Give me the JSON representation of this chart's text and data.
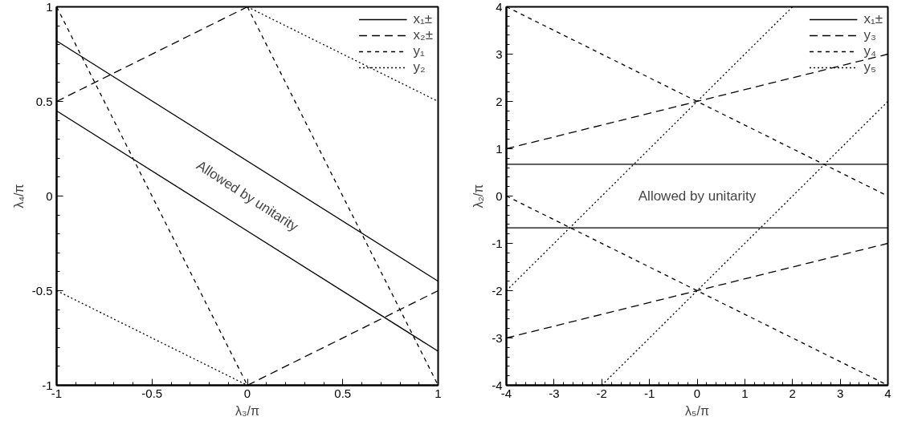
{
  "chart_data": [
    {
      "type": "line",
      "xlabel": "λ₃/π",
      "ylabel": "λ₄/π",
      "xlim": [
        -1,
        1
      ],
      "ylim": [
        -1,
        1
      ],
      "xticks": [
        -1,
        -0.5,
        0,
        0.5,
        1
      ],
      "yticks": [
        -1,
        -0.5,
        0,
        0.5,
        1
      ],
      "grid": false,
      "legend": "top right",
      "marker": "none",
      "annotations": [
        "Allowed by unitarity"
      ],
      "series": [
        {
          "name": "x₁±",
          "color": "#000000",
          "line_style": "solid",
          "x": [
            -1,
            1
          ],
          "values": [
            0.82,
            -0.45
          ]
        },
        {
          "color": "#000000",
          "line_style": "solid",
          "x": [
            -1,
            1
          ],
          "values": [
            0.45,
            -0.82
          ]
        },
        {
          "name": "x₂±",
          "color": "#000000",
          "line_style": "dashed",
          "x": [
            -1,
            0
          ],
          "values": [
            0.5,
            1
          ]
        },
        {
          "color": "#000000",
          "line_style": "dashed",
          "x": [
            0,
            1
          ],
          "values": [
            -1,
            -0.5
          ]
        },
        {
          "name": "y₁",
          "color": "#000000",
          "line_style": "dashed",
          "x": [
            -1,
            0
          ],
          "values": [
            1,
            -1
          ]
        },
        {
          "color": "#000000",
          "line_style": "dashed",
          "x": [
            0,
            1
          ],
          "values": [
            1,
            -1
          ]
        },
        {
          "name": "y₂",
          "color": "#000000",
          "line_style": "dotted",
          "x": [
            0,
            1
          ],
          "values": [
            1,
            0.5
          ]
        },
        {
          "color": "#000000",
          "line_style": "dotted",
          "x": [
            -1,
            0
          ],
          "values": [
            -0.5,
            -1
          ]
        }
      ]
    },
    {
      "type": "line",
      "xlabel": "λ₅/π",
      "ylabel": "λ₂/π",
      "xlim": [
        -4,
        4
      ],
      "ylim": [
        -4,
        4
      ],
      "xticks": [
        -4,
        -3,
        -2,
        -1,
        0,
        1,
        2,
        3,
        4
      ],
      "yticks": [
        -4,
        -3,
        -2,
        -1,
        0,
        1,
        2,
        3,
        4
      ],
      "grid": false,
      "legend": "top right",
      "marker": "none",
      "annotations": [
        "Allowed by unitarity"
      ],
      "series": [
        {
          "name": "x₁±",
          "color": "#000000",
          "line_style": "solid",
          "x": [
            -4,
            4
          ],
          "values": [
            0.67,
            0.67
          ]
        },
        {
          "color": "#000000",
          "line_style": "solid",
          "x": [
            -4,
            4
          ],
          "values": [
            -0.67,
            -0.67
          ]
        },
        {
          "name": "y₃",
          "color": "#000000",
          "line_style": "dashed",
          "x": [
            -4,
            4
          ],
          "values": [
            1,
            3
          ]
        },
        {
          "color": "#000000",
          "line_style": "dashed",
          "x": [
            -4,
            4
          ],
          "values": [
            -3,
            -1
          ]
        },
        {
          "name": "y₄",
          "color": "#000000",
          "line_style": "dashed",
          "x": [
            -4,
            4
          ],
          "values": [
            4,
            0
          ]
        },
        {
          "color": "#000000",
          "line_style": "dashed",
          "x": [
            -4,
            4
          ],
          "values": [
            0,
            -4
          ]
        },
        {
          "name": "y₅",
          "color": "#000000",
          "line_style": "dotted",
          "x": [
            -4,
            2
          ],
          "values": [
            -2,
            4
          ]
        },
        {
          "color": "#000000",
          "line_style": "dotted",
          "x": [
            -2,
            4
          ],
          "values": [
            -4,
            2
          ]
        }
      ]
    }
  ]
}
